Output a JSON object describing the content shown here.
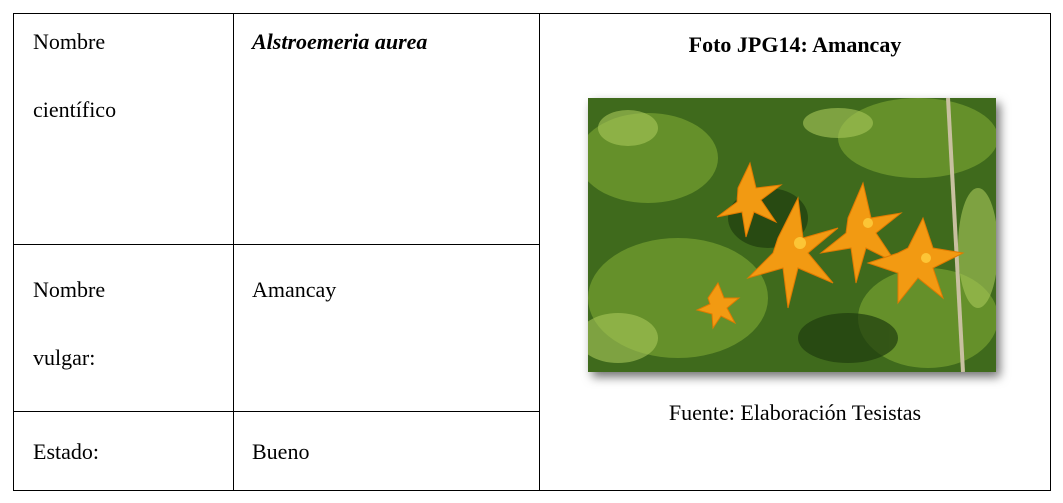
{
  "table": {
    "rows": [
      [
        "Nombre científico",
        "Alstroemeria aurea"
      ],
      [
        "Nombre vulgar:",
        "Amancay"
      ],
      [
        "Estado:",
        "Bueno"
      ]
    ]
  },
  "photo": {
    "title": "Foto JPG14: Amancay",
    "caption": "Fuente: Elaboración Tesistas"
  }
}
